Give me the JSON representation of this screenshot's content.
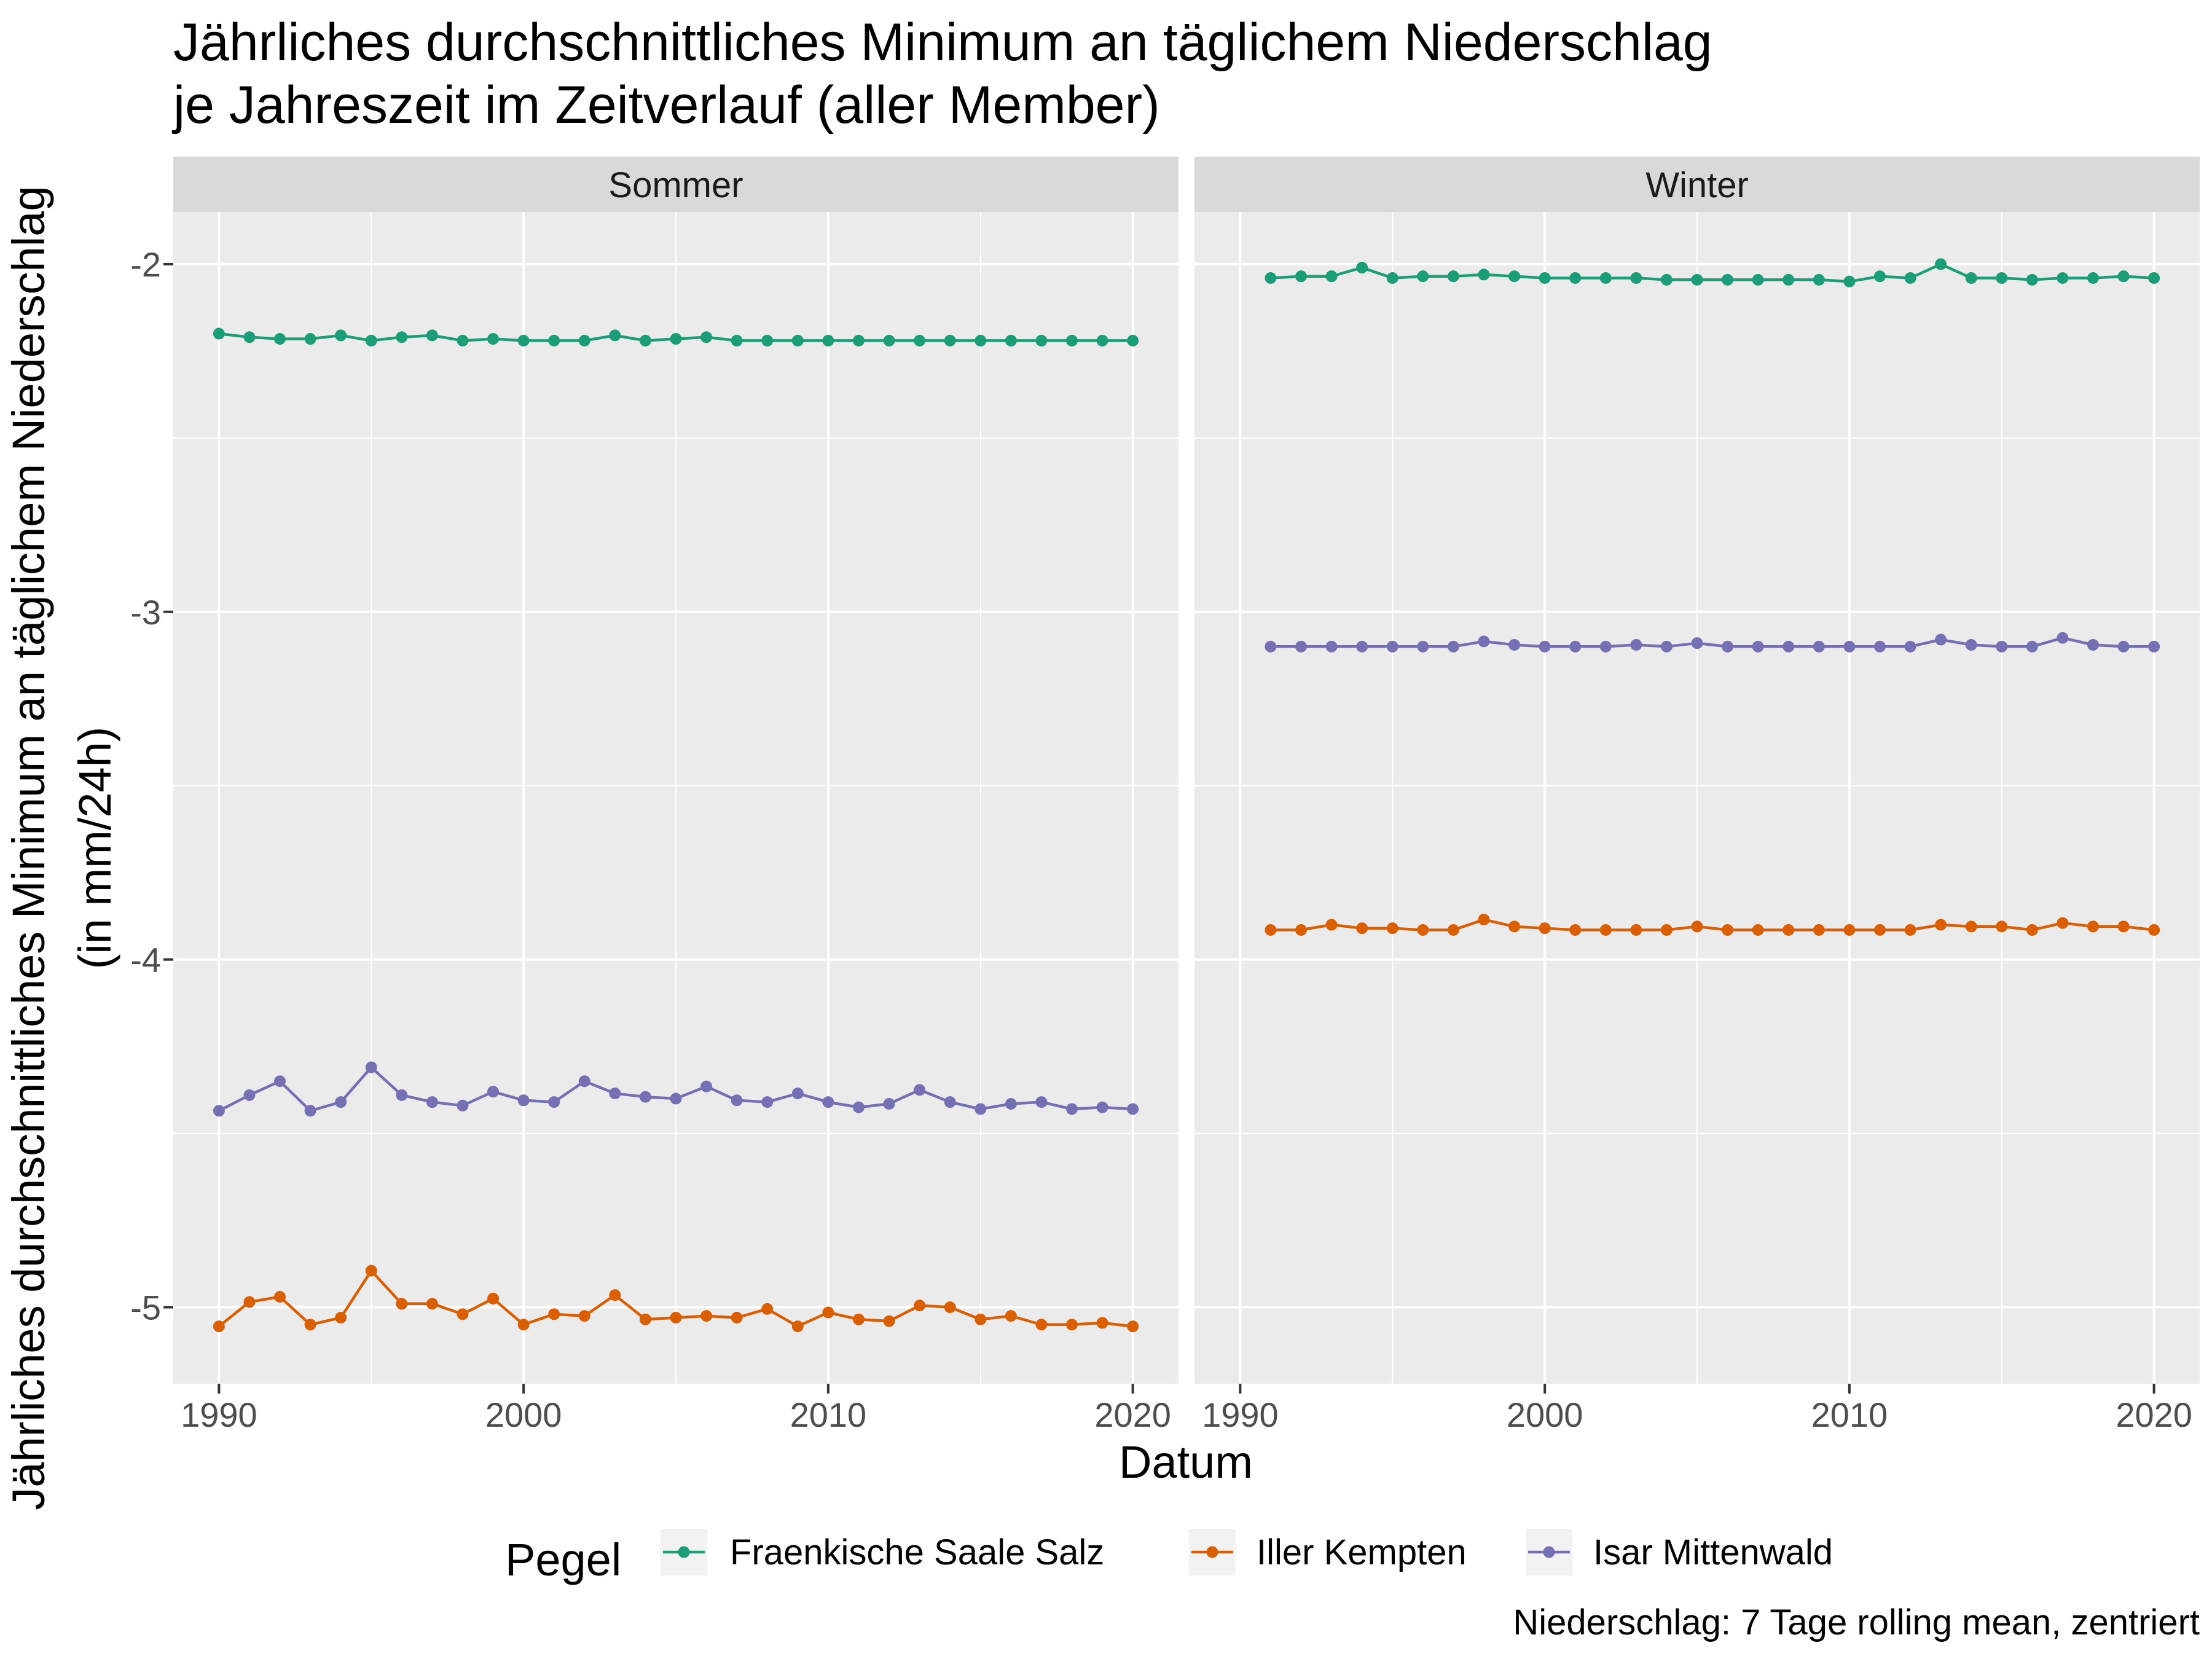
{
  "chart_data": {
    "type": "line",
    "title": [
      "Jährliches durchschnittliches Minimum an täglichem Niederschlag",
      "je Jahreszeit im Zeitverlauf (aller Member)"
    ],
    "xlabel": "Datum",
    "ylabel": [
      "Jährliches durchschnittliches Minimum an täglichem Niederschlag",
      "(in mm/24h)"
    ],
    "caption": "Niederschlag: 7 Tage rolling mean, zentriert",
    "legend": {
      "title": "Pegel",
      "position": "bottom"
    },
    "ylim": [
      -5.22,
      -1.85
    ],
    "yticks": [
      "-2",
      "-3",
      "-4",
      "-5"
    ],
    "xlim": [
      1988.5,
      2021.5
    ],
    "xticks": [
      "1990",
      "2000",
      "2010",
      "2020"
    ],
    "grid": true,
    "colors": {
      "Fraenkische Saale Salz": "#1b9e77",
      "Iller Kempten": "#d95f02",
      "Isar Mittenwald": "#7570b3"
    },
    "panels": [
      {
        "name": "Sommer",
        "series": [
          {
            "name": "Fraenkische Saale Salz",
            "x": [
              1990,
              1991,
              1992,
              1993,
              1994,
              1995,
              1996,
              1997,
              1998,
              1999,
              2000,
              2001,
              2002,
              2003,
              2004,
              2005,
              2006,
              2007,
              2008,
              2009,
              2010,
              2011,
              2012,
              2013,
              2014,
              2015,
              2016,
              2017,
              2018,
              2019,
              2020
            ],
            "y": [
              -2.2,
              -2.21,
              -2.215,
              -2.215,
              -2.205,
              -2.22,
              -2.21,
              -2.205,
              -2.22,
              -2.215,
              -2.22,
              -2.22,
              -2.22,
              -2.205,
              -2.22,
              -2.215,
              -2.21,
              -2.22,
              -2.22,
              -2.22,
              -2.22,
              -2.22,
              -2.22,
              -2.22,
              -2.22,
              -2.22,
              -2.22,
              -2.22,
              -2.22,
              -2.22,
              -2.22
            ]
          },
          {
            "name": "Iller Kempten",
            "x": [
              1990,
              1991,
              1992,
              1993,
              1994,
              1995,
              1996,
              1997,
              1998,
              1999,
              2000,
              2001,
              2002,
              2003,
              2004,
              2005,
              2006,
              2007,
              2008,
              2009,
              2010,
              2011,
              2012,
              2013,
              2014,
              2015,
              2016,
              2017,
              2018,
              2019,
              2020
            ],
            "y": [
              -5.055,
              -4.985,
              -4.97,
              -5.05,
              -5.03,
              -4.895,
              -4.99,
              -4.99,
              -5.02,
              -4.975,
              -5.05,
              -5.02,
              -5.025,
              -4.965,
              -5.035,
              -5.03,
              -5.025,
              -5.03,
              -5.005,
              -5.055,
              -5.015,
              -5.035,
              -5.04,
              -4.995,
              -5.0,
              -5.035,
              -5.025,
              -5.05,
              -5.05,
              -5.045,
              -5.055
            ]
          },
          {
            "name": "Isar Mittenwald",
            "x": [
              1990,
              1991,
              1992,
              1993,
              1994,
              1995,
              1996,
              1997,
              1998,
              1999,
              2000,
              2001,
              2002,
              2003,
              2004,
              2005,
              2006,
              2007,
              2008,
              2009,
              2010,
              2011,
              2012,
              2013,
              2014,
              2015,
              2016,
              2017,
              2018,
              2019,
              2020
            ],
            "y": [
              -4.435,
              -4.39,
              -4.35,
              -4.435,
              -4.41,
              -4.31,
              -4.39,
              -4.41,
              -4.42,
              -4.38,
              -4.405,
              -4.41,
              -4.35,
              -4.385,
              -4.395,
              -4.4,
              -4.365,
              -4.405,
              -4.41,
              -4.385,
              -4.41,
              -4.425,
              -4.415,
              -4.375,
              -4.41,
              -4.43,
              -4.415,
              -4.41,
              -4.43,
              -4.425,
              -4.43
            ]
          }
        ]
      },
      {
        "name": "Winter",
        "series": [
          {
            "name": "Fraenkische Saale Salz",
            "x": [
              1991,
              1992,
              1993,
              1994,
              1995,
              1996,
              1997,
              1998,
              1999,
              2000,
              2001,
              2002,
              2003,
              2004,
              2005,
              2006,
              2007,
              2008,
              2009,
              2010,
              2011,
              2012,
              2013,
              2014,
              2015,
              2016,
              2017,
              2018,
              2019,
              2020
            ],
            "y": [
              -2.04,
              -2.035,
              -2.035,
              -2.01,
              -2.04,
              -2.035,
              -2.035,
              -2.03,
              -2.035,
              -2.04,
              -2.04,
              -2.04,
              -2.04,
              -2.045,
              -2.045,
              -2.045,
              -2.045,
              -2.045,
              -2.045,
              -2.05,
              -2.035,
              -2.04,
              -2.0,
              -2.04,
              -2.04,
              -2.045,
              -2.04,
              -2.04,
              -2.035,
              -2.04
            ]
          },
          {
            "name": "Iller Kempten",
            "x": [
              1991,
              1992,
              1993,
              1994,
              1995,
              1996,
              1997,
              1998,
              1999,
              2000,
              2001,
              2002,
              2003,
              2004,
              2005,
              2006,
              2007,
              2008,
              2009,
              2010,
              2011,
              2012,
              2013,
              2014,
              2015,
              2016,
              2017,
              2018,
              2019,
              2020
            ],
            "y": [
              -3.915,
              -3.915,
              -3.9,
              -3.91,
              -3.91,
              -3.915,
              -3.915,
              -3.885,
              -3.905,
              -3.91,
              -3.915,
              -3.915,
              -3.915,
              -3.915,
              -3.905,
              -3.915,
              -3.915,
              -3.915,
              -3.915,
              -3.915,
              -3.915,
              -3.915,
              -3.9,
              -3.905,
              -3.905,
              -3.915,
              -3.895,
              -3.905,
              -3.905,
              -3.915
            ]
          },
          {
            "name": "Isar Mittenwald",
            "x": [
              1991,
              1992,
              1993,
              1994,
              1995,
              1996,
              1997,
              1998,
              1999,
              2000,
              2001,
              2002,
              2003,
              2004,
              2005,
              2006,
              2007,
              2008,
              2009,
              2010,
              2011,
              2012,
              2013,
              2014,
              2015,
              2016,
              2017,
              2018,
              2019,
              2020
            ],
            "y": [
              -3.1,
              -3.1,
              -3.1,
              -3.1,
              -3.1,
              -3.1,
              -3.1,
              -3.085,
              -3.095,
              -3.1,
              -3.1,
              -3.1,
              -3.095,
              -3.1,
              -3.09,
              -3.1,
              -3.1,
              -3.1,
              -3.1,
              -3.1,
              -3.1,
              -3.1,
              -3.08,
              -3.095,
              -3.1,
              -3.1,
              -3.075,
              -3.095,
              -3.1,
              -3.1
            ]
          }
        ]
      }
    ]
  }
}
